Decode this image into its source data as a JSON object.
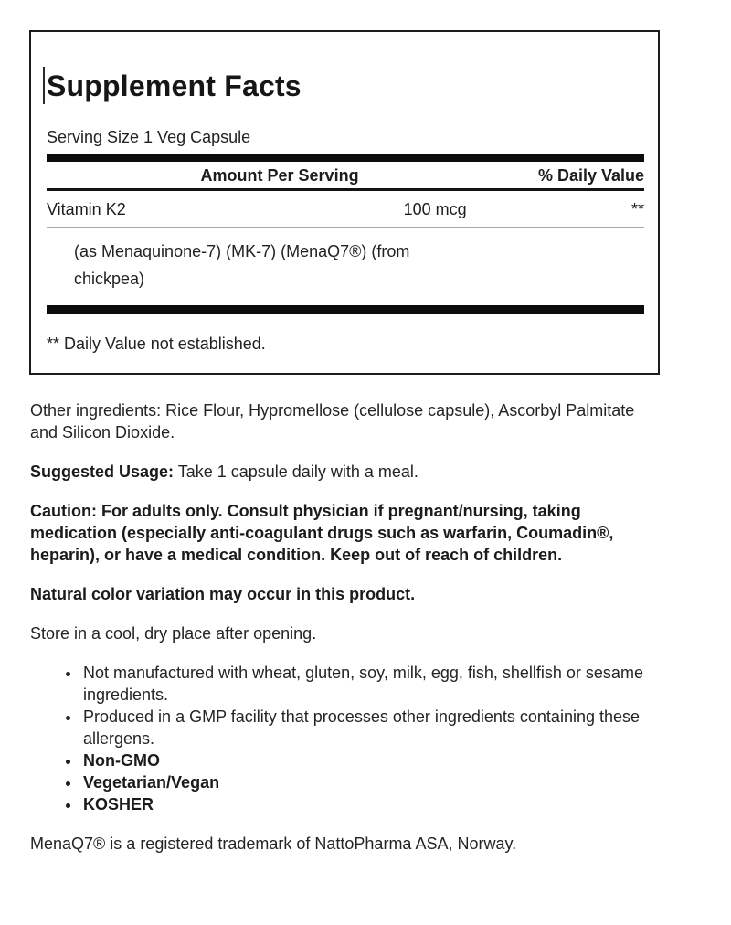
{
  "label_box": {
    "title": "Supplement Facts",
    "serving_size": "Serving Size 1 Veg Capsule",
    "table": {
      "headers": {
        "amount": "Amount Per Serving",
        "daily_value": "% Daily Value"
      },
      "rows": [
        {
          "name": "Vitamin K2",
          "amount": "100 mcg",
          "daily_value": "**"
        }
      ],
      "sub_ingredient": "(as Menaquinone-7) (MK-7) (MenaQ7®) (from chickpea)"
    },
    "footnote": "** Daily Value not established."
  },
  "body": {
    "other_ingredients": "Other ingredients: Rice Flour, Hypromellose (cellulose capsule), Ascorbyl Palmitate and Silicon Dioxide.",
    "suggested_usage_label": "Suggested Usage:",
    "suggested_usage_text": " Take 1 capsule daily with a meal.",
    "caution": "Caution: For adults only. Consult physician if pregnant/nursing, taking medication (especially anti-coagulant drugs such as warfarin, Coumadin®, heparin), or have a medical condition. Keep out of reach of children.",
    "color_note": "Natural color variation may occur in this product.",
    "storage": "Store in a cool, dry place after opening.",
    "bullets": [
      {
        "text": "Not manufactured with wheat, gluten, soy, milk, egg, fish, shellfish or sesame ingredients.",
        "bold": false
      },
      {
        "text": "Produced in a GMP facility that processes other ingredients containing these allergens.",
        "bold": false
      },
      {
        "text": "Non-GMO",
        "bold": true
      },
      {
        "text": "Vegetarian/Vegan",
        "bold": true
      },
      {
        "text": "KOSHER",
        "bold": true
      }
    ],
    "trademark": "MenaQ7® is a registered trademark of NattoPharma ASA, Norway."
  },
  "colors": {
    "text": "#1b1b1b",
    "panel_border": "#1c1c1c",
    "thick_bar": "#0c0c0c",
    "thin_divider": "#a8a8a8",
    "background": "#ffffff"
  }
}
